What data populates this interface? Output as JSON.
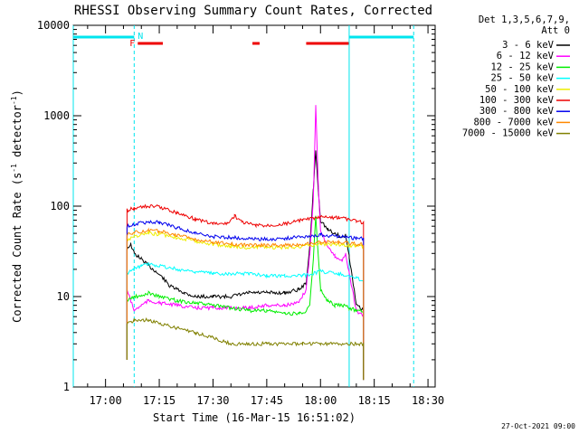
{
  "chart_data": {
    "type": "line",
    "title": "RHESSI Observing Summary Count Rates, Corrected",
    "xlabel": "Start Time (16-Mar-15 16:51:02)",
    "ylabel": "Corrected Count Rate (s⁻¹ detector⁻¹)",
    "ylabel_base": "Corrected Count Rate (s",
    "ylabel_mid": " detector",
    "ylabel_end": ")",
    "ylabel_sup": "-1",
    "y_scale": "log",
    "ylim": [
      1,
      10000
    ],
    "xlim": [
      "16:51",
      "18:32"
    ],
    "x_unit": "time HH:MM",
    "x_tick_labels": [
      "17:00",
      "17:15",
      "17:30",
      "17:45",
      "18:00",
      "18:15",
      "18:30"
    ],
    "y_tick_labels": [
      "1",
      "10",
      "100",
      "1000",
      "10000"
    ],
    "legend_header": [
      "Det 1,3,5,6,7,9,",
      "Att 0"
    ],
    "legend_placement": "right, outside plot",
    "date_stamp": "27-Oct-2021 09:00",
    "grid": false,
    "flags": {
      "night_label": "N",
      "flare_label": "F",
      "night_color": "#00e5ee",
      "flare_color": "#ee0000",
      "night_intervals": [
        [
          "16:51",
          "17:08"
        ],
        [
          "18:08",
          "18:26"
        ]
      ],
      "flare_intervals": [
        [
          "17:09",
          "17:16"
        ],
        [
          "17:41",
          "17:43"
        ],
        [
          "17:56",
          "18:08"
        ]
      ],
      "night_boundaries_dashed": [
        "17:08",
        "18:26"
      ],
      "night_boundaries_solid": [
        "18:08"
      ]
    },
    "series": [
      {
        "name": "3 - 6 keV",
        "color": "#000000",
        "points": [
          [
            "17:06",
            34
          ],
          [
            "17:07",
            38
          ],
          [
            "17:08",
            30
          ],
          [
            "17:10",
            26
          ],
          [
            "17:12",
            22
          ],
          [
            "17:14",
            19
          ],
          [
            "17:16",
            16
          ],
          [
            "17:18",
            13
          ],
          [
            "17:20",
            12
          ],
          [
            "17:22",
            11
          ],
          [
            "17:25",
            10
          ],
          [
            "17:30",
            10
          ],
          [
            "17:35",
            10
          ],
          [
            "17:40",
            11
          ],
          [
            "17:45",
            11
          ],
          [
            "17:50",
            11
          ],
          [
            "17:54",
            12
          ],
          [
            "17:56",
            14
          ],
          [
            "17:57",
            35
          ],
          [
            "17:58",
            150
          ],
          [
            "17:58:40",
            420
          ],
          [
            "17:59:20",
            160
          ],
          [
            "18:00",
            70
          ],
          [
            "18:02",
            55
          ],
          [
            "18:04",
            50
          ],
          [
            "18:06",
            45
          ],
          [
            "18:07",
            48
          ],
          [
            "18:08",
            28
          ],
          [
            "18:10",
            8
          ],
          [
            "18:12",
            7
          ]
        ]
      },
      {
        "name": "6 - 12 keV",
        "color": "#ff00ff",
        "points": [
          [
            "17:06",
            12
          ],
          [
            "17:07",
            9
          ],
          [
            "17:08",
            7
          ],
          [
            "17:10",
            8
          ],
          [
            "17:12",
            9
          ],
          [
            "17:15",
            8.5
          ],
          [
            "17:20",
            8
          ],
          [
            "17:25",
            7.5
          ],
          [
            "17:30",
            7.5
          ],
          [
            "17:35",
            7.5
          ],
          [
            "17:40",
            7.5
          ],
          [
            "17:45",
            8
          ],
          [
            "17:50",
            8
          ],
          [
            "17:54",
            8.5
          ],
          [
            "17:56",
            12
          ],
          [
            "17:57",
            30
          ],
          [
            "17:58",
            120
          ],
          [
            "17:58:40",
            1300
          ],
          [
            "17:59:20",
            200
          ],
          [
            "18:00",
            55
          ],
          [
            "18:02",
            35
          ],
          [
            "18:04",
            28
          ],
          [
            "18:06",
            25
          ],
          [
            "18:07",
            30
          ],
          [
            "18:08",
            18
          ],
          [
            "18:10",
            7
          ],
          [
            "18:12",
            6
          ]
        ]
      },
      {
        "name": "12 - 25 keV",
        "color": "#00ee00",
        "points": [
          [
            "17:06",
            9
          ],
          [
            "17:08",
            10
          ],
          [
            "17:10",
            10
          ],
          [
            "17:12",
            11
          ],
          [
            "17:15",
            10
          ],
          [
            "17:20",
            9
          ],
          [
            "17:25",
            8.5
          ],
          [
            "17:30",
            8
          ],
          [
            "17:35",
            7.5
          ],
          [
            "17:40",
            7
          ],
          [
            "17:45",
            7
          ],
          [
            "17:50",
            6.5
          ],
          [
            "17:54",
            6.5
          ],
          [
            "17:56",
            7
          ],
          [
            "17:57",
            8
          ],
          [
            "17:58",
            25
          ],
          [
            "17:58:40",
            80
          ],
          [
            "17:59:20",
            30
          ],
          [
            "18:00",
            12
          ],
          [
            "18:02",
            9
          ],
          [
            "18:04",
            8
          ],
          [
            "18:06",
            8
          ],
          [
            "18:08",
            7.5
          ],
          [
            "18:10",
            7
          ],
          [
            "18:12",
            7
          ]
        ]
      },
      {
        "name": "25 - 50 keV",
        "color": "#00ffff",
        "points": [
          [
            "17:06",
            18
          ],
          [
            "17:08",
            20
          ],
          [
            "17:10",
            22
          ],
          [
            "17:12",
            23
          ],
          [
            "17:15",
            22
          ],
          [
            "17:20",
            20
          ],
          [
            "17:25",
            19
          ],
          [
            "17:30",
            18
          ],
          [
            "17:35",
            18
          ],
          [
            "17:40",
            18
          ],
          [
            "17:45",
            17
          ],
          [
            "17:50",
            17
          ],
          [
            "17:55",
            17
          ],
          [
            "17:58",
            18
          ],
          [
            "18:00",
            19
          ],
          [
            "18:05",
            18
          ],
          [
            "18:10",
            16
          ],
          [
            "18:12",
            15
          ]
        ]
      },
      {
        "name": "50 - 100 keV",
        "color": "#eeee00",
        "points": [
          [
            "17:06",
            43
          ],
          [
            "17:08",
            46
          ],
          [
            "17:12",
            50
          ],
          [
            "17:15",
            49
          ],
          [
            "17:20",
            45
          ],
          [
            "17:25",
            41
          ],
          [
            "17:30",
            38
          ],
          [
            "17:35",
            36
          ],
          [
            "17:40",
            35
          ],
          [
            "17:45",
            35
          ],
          [
            "17:50",
            35
          ],
          [
            "17:55",
            36
          ],
          [
            "18:00",
            38
          ],
          [
            "18:05",
            38
          ],
          [
            "18:10",
            36
          ],
          [
            "18:12",
            36
          ]
        ]
      },
      {
        "name": "100 - 300 keV",
        "color": "#ee0000",
        "points": [
          [
            "17:06",
            90
          ],
          [
            "17:08",
            95
          ],
          [
            "17:12",
            100
          ],
          [
            "17:15",
            98
          ],
          [
            "17:20",
            85
          ],
          [
            "17:25",
            72
          ],
          [
            "17:30",
            64
          ],
          [
            "17:34",
            64
          ],
          [
            "17:36",
            78
          ],
          [
            "17:38",
            67
          ],
          [
            "17:42",
            61
          ],
          [
            "17:45",
            61
          ],
          [
            "17:50",
            64
          ],
          [
            "17:55",
            70
          ],
          [
            "18:00",
            75
          ],
          [
            "18:05",
            75
          ],
          [
            "18:10",
            68
          ],
          [
            "18:12",
            66
          ]
        ]
      },
      {
        "name": "300 - 800 keV",
        "color": "#0000ee",
        "points": [
          [
            "17:06",
            60
          ],
          [
            "17:08",
            63
          ],
          [
            "17:12",
            67
          ],
          [
            "17:15",
            66
          ],
          [
            "17:20",
            58
          ],
          [
            "17:25",
            50
          ],
          [
            "17:30",
            46
          ],
          [
            "17:35",
            45
          ],
          [
            "17:40",
            44
          ],
          [
            "17:45",
            43
          ],
          [
            "17:50",
            44
          ],
          [
            "17:55",
            46
          ],
          [
            "18:00",
            48
          ],
          [
            "18:05",
            46
          ],
          [
            "18:10",
            44
          ],
          [
            "18:12",
            44
          ]
        ]
      },
      {
        "name": "800 - 7000 keV",
        "color": "#ff8800",
        "points": [
          [
            "17:06",
            48
          ],
          [
            "17:08",
            51
          ],
          [
            "17:12",
            54
          ],
          [
            "17:15",
            53
          ],
          [
            "17:20",
            48
          ],
          [
            "17:25",
            43
          ],
          [
            "17:30",
            40
          ],
          [
            "17:35",
            38
          ],
          [
            "17:40",
            37
          ],
          [
            "17:45",
            37
          ],
          [
            "17:50",
            37
          ],
          [
            "17:55",
            38
          ],
          [
            "18:00",
            40
          ],
          [
            "18:05",
            40
          ],
          [
            "18:10",
            38
          ],
          [
            "18:12",
            38
          ]
        ]
      },
      {
        "name": "7000 - 15000 keV",
        "color": "#808000",
        "points": [
          [
            "17:06",
            5
          ],
          [
            "17:08",
            5.5
          ],
          [
            "17:12",
            5.5
          ],
          [
            "17:15",
            5
          ],
          [
            "17:20",
            4.5
          ],
          [
            "17:25",
            4
          ],
          [
            "17:30",
            3.5
          ],
          [
            "17:35",
            3
          ],
          [
            "17:40",
            3
          ],
          [
            "17:45",
            3
          ],
          [
            "17:50",
            3
          ],
          [
            "17:55",
            3
          ],
          [
            "18:00",
            3
          ],
          [
            "18:05",
            3
          ],
          [
            "18:10",
            3
          ],
          [
            "18:12",
            3
          ]
        ]
      }
    ]
  }
}
